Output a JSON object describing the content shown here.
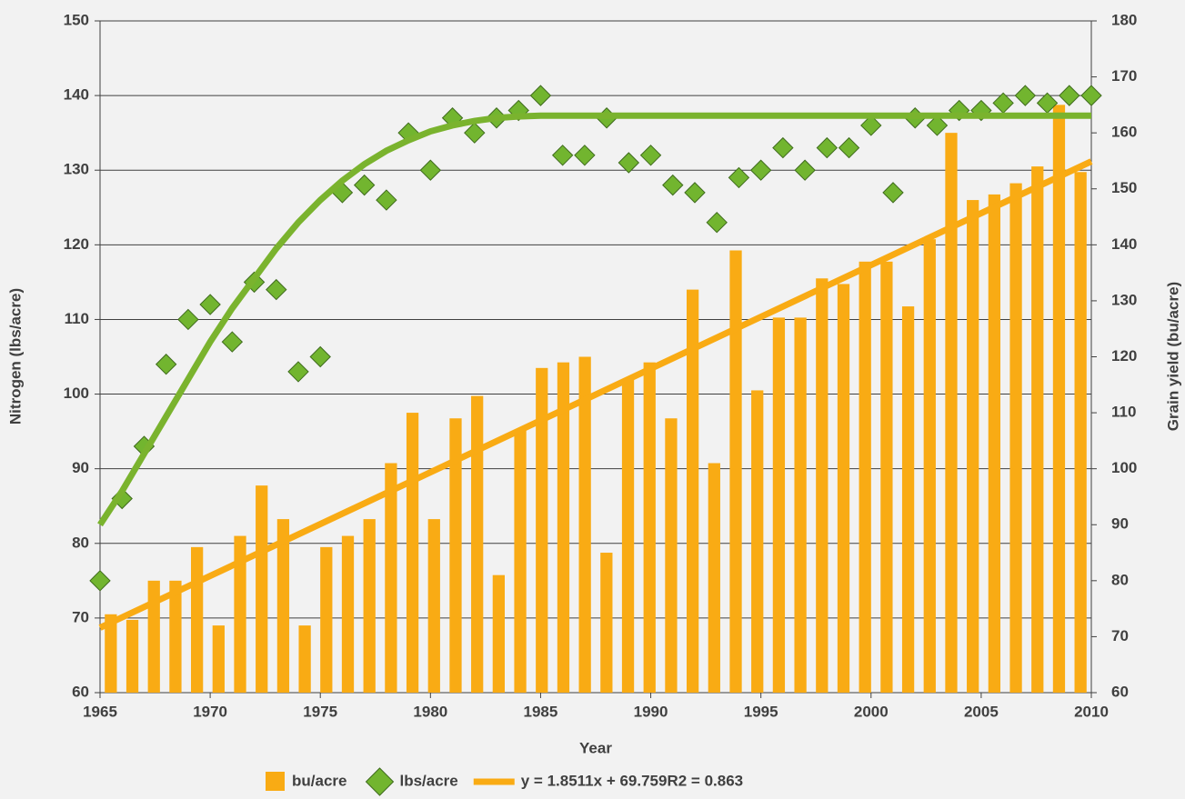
{
  "chart_data": {
    "type": "combo",
    "x_label": "Year",
    "y_label": "Nitrogen (lbs/acre)",
    "y2_label": "Grain yield (bu/acre)",
    "categories": [
      1965,
      1966,
      1967,
      1968,
      1969,
      1970,
      1971,
      1972,
      1973,
      1974,
      1975,
      1976,
      1977,
      1978,
      1979,
      1980,
      1981,
      1982,
      1983,
      1984,
      1985,
      1986,
      1987,
      1988,
      1989,
      1990,
      1991,
      1992,
      1993,
      1994,
      1995,
      1996,
      1997,
      1998,
      1999,
      2000,
      2001,
      2002,
      2003,
      2004,
      2005,
      2006,
      2007,
      2008,
      2009,
      2010
    ],
    "xlim": [
      1965,
      2010
    ],
    "xticks": [
      1965,
      1970,
      1975,
      1980,
      1985,
      1990,
      1995,
      2000,
      2005,
      2010
    ],
    "ylim": [
      60,
      150
    ],
    "yticks": [
      60,
      70,
      80,
      90,
      100,
      110,
      120,
      130,
      140,
      150
    ],
    "y2lim": [
      60,
      180
    ],
    "y2ticks": [
      60,
      70,
      80,
      90,
      100,
      110,
      120,
      130,
      140,
      150,
      160,
      170,
      180
    ],
    "grid": true,
    "series": [
      {
        "name": "bu/acre",
        "type": "bar",
        "axis": "y2",
        "color": "#f9ab14",
        "values": [
          74,
          73,
          80,
          80,
          86,
          72,
          88,
          97,
          91,
          72,
          86,
          88,
          91,
          101,
          110,
          91,
          109,
          113,
          81,
          107,
          118,
          119,
          120,
          85,
          116,
          119,
          109,
          132,
          101,
          139,
          114,
          127,
          127,
          134,
          133,
          137,
          137,
          129,
          141,
          160,
          148,
          149,
          151,
          154,
          165,
          153
        ]
      },
      {
        "name": "lbs/acre",
        "type": "scatter",
        "color": "#72b52f",
        "x": [
          1965,
          1966,
          1967,
          1968,
          1969,
          1970,
          1971,
          1972,
          1973,
          1974,
          1975,
          1976,
          1977,
          1978,
          1979,
          1980,
          1981,
          1982,
          1983,
          1984,
          1985,
          1986,
          1987,
          1988,
          1989,
          1990,
          1991,
          1992,
          1993,
          1994,
          1995,
          1996,
          1997,
          1998,
          1999,
          2000,
          2001,
          2002,
          2003,
          2004,
          2005,
          2006,
          2007,
          2008,
          2009,
          2010
        ],
        "values": [
          75,
          86,
          93,
          104,
          110,
          112,
          107,
          115,
          114,
          103,
          105,
          127,
          128,
          126,
          135,
          130,
          137,
          135,
          137,
          138,
          140,
          132,
          132,
          137,
          131,
          132,
          128,
          127,
          123,
          129,
          130,
          133,
          130,
          133,
          133,
          136,
          127,
          137,
          136,
          138,
          138,
          139,
          140,
          139,
          140,
          140
        ]
      },
      {
        "type": "line",
        "color": "#7ab32e",
        "x": [
          1965,
          1966,
          1967,
          1968,
          1969,
          1970,
          1971,
          1972,
          1973,
          1974,
          1975,
          1976,
          1977,
          1978,
          1979,
          1980,
          1981,
          1982,
          1983,
          1984,
          1985,
          1986,
          2010
        ],
        "values": [
          82.5,
          87,
          92,
          97,
          102,
          107,
          111.5,
          115.5,
          119.5,
          123,
          126,
          128.6,
          130.8,
          132.6,
          134,
          135.2,
          136,
          136.6,
          137,
          137.2,
          137.3,
          137.3,
          137.3
        ]
      },
      {
        "name": "y = 1.8511x + 69.759R2 = 0.863",
        "type": "line",
        "axis": "y2",
        "color": "#f9ab14",
        "x": [
          1965,
          2010
        ],
        "values": [
          71.6,
          154.9
        ]
      }
    ]
  }
}
